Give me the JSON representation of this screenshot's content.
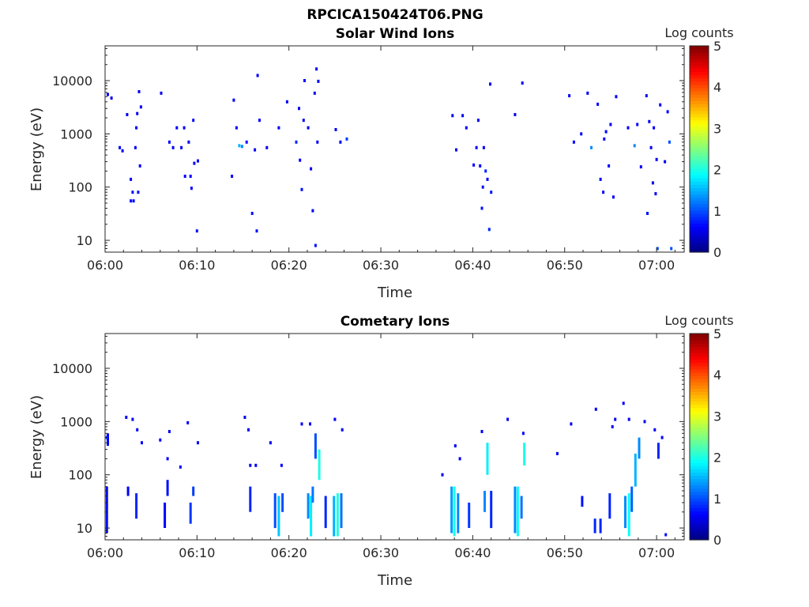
{
  "figure_title": "RPCICA150424T06.PNG",
  "colorbar": {
    "label": "Log counts",
    "ticks": [
      "0",
      "1",
      "2",
      "3",
      "4",
      "5"
    ],
    "range": [
      0,
      5
    ],
    "colormap": "jet"
  },
  "x_ticks": [
    "06:00",
    "06:10",
    "06:20",
    "06:30",
    "06:40",
    "06:50",
    "07:00"
  ],
  "y_ticks": [
    "10",
    "100",
    "1000",
    "10000"
  ],
  "chart_data": [
    {
      "type": "heatmap",
      "title": "Solar Wind Ions",
      "xlabel": "Time",
      "ylabel": "Energy (eV)",
      "x_range_minutes_after_06_00": [
        0,
        63
      ],
      "y_range_eV": [
        6,
        45000
      ],
      "y_scale": "log",
      "grid": false,
      "value_label": "Log counts",
      "cells_note": "each cell: [minutes after 06:00, energy eV, log counts]",
      "cells": [
        [
          0.3,
          5500,
          0.5
        ],
        [
          0.7,
          4700,
          0.5
        ],
        [
          1.6,
          550,
          0.6
        ],
        [
          1.9,
          480,
          0.6
        ],
        [
          2.4,
          2300,
          0.6
        ],
        [
          2.8,
          140,
          0.6
        ],
        [
          2.8,
          55,
          0.7
        ],
        [
          3.0,
          80,
          0.7
        ],
        [
          3.1,
          55,
          0.6
        ],
        [
          3.3,
          550,
          0.6
        ],
        [
          3.4,
          1300,
          0.6
        ],
        [
          3.5,
          2400,
          0.6
        ],
        [
          3.6,
          80,
          0.7
        ],
        [
          3.7,
          6200,
          0.6
        ],
        [
          3.8,
          250,
          0.6
        ],
        [
          3.9,
          3200,
          0.6
        ],
        [
          6.1,
          5800,
          0.6
        ],
        [
          7.0,
          700,
          0.6
        ],
        [
          7.4,
          550,
          0.6
        ],
        [
          7.8,
          1300,
          0.6
        ],
        [
          8.3,
          550,
          0.6
        ],
        [
          8.6,
          1300,
          0.6
        ],
        [
          8.7,
          160,
          0.6
        ],
        [
          9.1,
          700,
          0.6
        ],
        [
          9.3,
          160,
          0.6
        ],
        [
          9.4,
          95,
          0.6
        ],
        [
          9.6,
          1800,
          0.6
        ],
        [
          9.7,
          280,
          0.6
        ],
        [
          10.0,
          15,
          0.7
        ],
        [
          10.1,
          310,
          0.6
        ],
        [
          13.8,
          160,
          0.6
        ],
        [
          14.0,
          4300,
          0.6
        ],
        [
          14.3,
          1300,
          0.6
        ],
        [
          14.6,
          600,
          1.5
        ],
        [
          14.9,
          580,
          1.3
        ],
        [
          15.4,
          700,
          0.7
        ],
        [
          16.0,
          32,
          0.7
        ],
        [
          16.3,
          500,
          0.6
        ],
        [
          16.5,
          15,
          0.7
        ],
        [
          16.6,
          12500,
          0.6
        ],
        [
          16.8,
          1800,
          0.6
        ],
        [
          17.6,
          550,
          0.6
        ],
        [
          18.9,
          1300,
          0.6
        ],
        [
          19.8,
          4000,
          0.6
        ],
        [
          20.8,
          700,
          0.8
        ],
        [
          21.1,
          3000,
          0.6
        ],
        [
          21.2,
          320,
          0.6
        ],
        [
          21.4,
          90,
          0.7
        ],
        [
          21.6,
          1800,
          0.6
        ],
        [
          21.7,
          10000,
          0.6
        ],
        [
          22.1,
          1300,
          0.6
        ],
        [
          22.4,
          220,
          0.6
        ],
        [
          22.6,
          36,
          0.6
        ],
        [
          22.8,
          5800,
          0.6
        ],
        [
          22.9,
          8,
          0.7
        ],
        [
          23.0,
          16500,
          0.6
        ],
        [
          23.1,
          700,
          0.6
        ],
        [
          23.2,
          9700,
          0.6
        ],
        [
          25.1,
          1200,
          0.6
        ],
        [
          25.6,
          700,
          0.6
        ],
        [
          26.3,
          800,
          0.9
        ],
        [
          37.8,
          2200,
          0.6
        ],
        [
          38.2,
          500,
          0.6
        ],
        [
          38.9,
          2200,
          0.6
        ],
        [
          39.3,
          1300,
          0.6
        ],
        [
          40.1,
          260,
          0.6
        ],
        [
          40.4,
          550,
          0.6
        ],
        [
          40.6,
          1800,
          0.6
        ],
        [
          40.8,
          250,
          0.6
        ],
        [
          41.0,
          40,
          0.7
        ],
        [
          41.1,
          100,
          0.7
        ],
        [
          41.2,
          550,
          0.6
        ],
        [
          41.4,
          200,
          0.8
        ],
        [
          41.6,
          140,
          0.6
        ],
        [
          41.8,
          16,
          0.8
        ],
        [
          41.9,
          8600,
          0.6
        ],
        [
          42.0,
          80,
          0.7
        ],
        [
          44.6,
          2300,
          0.6
        ],
        [
          45.4,
          9000,
          0.6
        ],
        [
          50.5,
          5200,
          0.6
        ],
        [
          51.0,
          700,
          0.6
        ],
        [
          51.8,
          1000,
          0.6
        ],
        [
          52.5,
          5800,
          0.6
        ],
        [
          52.9,
          550,
          1.3
        ],
        [
          53.6,
          3600,
          0.6
        ],
        [
          53.9,
          140,
          0.6
        ],
        [
          54.2,
          80,
          0.6
        ],
        [
          54.3,
          800,
          0.6
        ],
        [
          54.5,
          1100,
          0.6
        ],
        [
          54.8,
          250,
          0.6
        ],
        [
          55.0,
          1500,
          0.6
        ],
        [
          55.3,
          65,
          0.6
        ],
        [
          55.6,
          5000,
          0.6
        ],
        [
          56.9,
          1300,
          0.6
        ],
        [
          57.6,
          600,
          1.3
        ],
        [
          57.9,
          1500,
          0.6
        ],
        [
          58.3,
          240,
          0.6
        ],
        [
          58.9,
          5200,
          0.6
        ],
        [
          59.0,
          32,
          0.7
        ],
        [
          59.2,
          1700,
          0.6
        ],
        [
          59.4,
          550,
          0.6
        ],
        [
          59.6,
          120,
          0.6
        ],
        [
          59.7,
          1300,
          0.6
        ],
        [
          59.9,
          75,
          0.6
        ],
        [
          60.0,
          330,
          0.6
        ],
        [
          60.1,
          7,
          1.0
        ],
        [
          60.4,
          3500,
          0.6
        ],
        [
          60.9,
          300,
          0.6
        ],
        [
          61.2,
          2600,
          0.6
        ],
        [
          61.4,
          700,
          1.0
        ],
        [
          61.6,
          7,
          1.0
        ]
      ]
    },
    {
      "type": "heatmap",
      "title": "Cometary Ions",
      "xlabel": "Time",
      "ylabel": "Energy (eV)",
      "x_range_minutes_after_06_00": [
        0,
        63
      ],
      "y_range_eV": [
        6,
        45000
      ],
      "y_scale": "log",
      "grid": false,
      "value_label": "Log counts",
      "columns_note": "vertical streaks: [minutes after 06:00, low energy eV, high energy eV, log counts]",
      "columns": [
        [
          0.2,
          8,
          60,
          0.7
        ],
        [
          0.3,
          350,
          600,
          0.6
        ],
        [
          2.5,
          40,
          60,
          0.6
        ],
        [
          3.4,
          15,
          45,
          0.8
        ],
        [
          6.5,
          10,
          30,
          0.6
        ],
        [
          6.8,
          40,
          80,
          0.7
        ],
        [
          9.3,
          12,
          30,
          0.9
        ],
        [
          9.6,
          40,
          60,
          0.9
        ],
        [
          15.8,
          20,
          60,
          0.8
        ],
        [
          18.5,
          10,
          45,
          1.0
        ],
        [
          18.9,
          7,
          40,
          1.6
        ],
        [
          19.3,
          20,
          45,
          1.0
        ],
        [
          22.1,
          15,
          45,
          1.3
        ],
        [
          22.4,
          7,
          40,
          1.8
        ],
        [
          22.6,
          30,
          60,
          1.2
        ],
        [
          22.9,
          200,
          600,
          1.0
        ],
        [
          23.3,
          80,
          300,
          2.0
        ],
        [
          24.0,
          10,
          40,
          0.8
        ],
        [
          24.9,
          7,
          40,
          1.5
        ],
        [
          25.3,
          7,
          45,
          2.0
        ],
        [
          25.7,
          10,
          45,
          1.2
        ],
        [
          37.7,
          8,
          60,
          1.4
        ],
        [
          38.0,
          7,
          60,
          2.0
        ],
        [
          38.4,
          8,
          45,
          1.3
        ],
        [
          39.6,
          10,
          30,
          0.9
        ],
        [
          41.3,
          20,
          50,
          1.3
        ],
        [
          41.6,
          100,
          400,
          1.8
        ],
        [
          42.0,
          10,
          50,
          0.8
        ],
        [
          44.6,
          8,
          60,
          1.3
        ],
        [
          44.9,
          7,
          60,
          1.9
        ],
        [
          45.3,
          15,
          40,
          1.2
        ],
        [
          45.6,
          150,
          400,
          2.0
        ],
        [
          51.9,
          25,
          40,
          0.7
        ],
        [
          53.3,
          8,
          15,
          0.8
        ],
        [
          53.9,
          8,
          15,
          0.8
        ],
        [
          54.9,
          15,
          45,
          0.8
        ],
        [
          56.6,
          10,
          40,
          1.3
        ],
        [
          57.0,
          7,
          45,
          1.9
        ],
        [
          57.3,
          20,
          60,
          1.1
        ],
        [
          57.7,
          60,
          250,
          1.5
        ],
        [
          58.1,
          200,
          500,
          1.3
        ],
        [
          60.2,
          200,
          400,
          0.8
        ],
        [
          61.0,
          7,
          8,
          0.7
        ]
      ],
      "cells_note": "isolated cells: [minutes after 06:00, energy eV, log counts]",
      "cells": [
        [
          0.2,
          500,
          0.8
        ],
        [
          2.3,
          1200,
          0.6
        ],
        [
          3.0,
          1100,
          0.6
        ],
        [
          3.5,
          700,
          0.6
        ],
        [
          4.0,
          400,
          0.6
        ],
        [
          6.0,
          450,
          0.6
        ],
        [
          6.8,
          200,
          0.6
        ],
        [
          7.0,
          650,
          0.6
        ],
        [
          8.2,
          140,
          0.6
        ],
        [
          9.0,
          950,
          0.6
        ],
        [
          10.1,
          400,
          0.6
        ],
        [
          15.2,
          1200,
          0.6
        ],
        [
          15.6,
          700,
          0.6
        ],
        [
          15.8,
          150,
          0.6
        ],
        [
          16.4,
          150,
          0.6
        ],
        [
          18.0,
          400,
          0.6
        ],
        [
          19.2,
          150,
          0.6
        ],
        [
          21.4,
          900,
          0.6
        ],
        [
          22.3,
          900,
          0.6
        ],
        [
          25.0,
          1100,
          0.6
        ],
        [
          25.8,
          700,
          0.6
        ],
        [
          36.7,
          100,
          0.6
        ],
        [
          38.1,
          350,
          0.6
        ],
        [
          38.6,
          200,
          0.6
        ],
        [
          41.0,
          650,
          0.6
        ],
        [
          43.8,
          1100,
          0.6
        ],
        [
          45.5,
          600,
          0.6
        ],
        [
          49.2,
          250,
          0.6
        ],
        [
          50.7,
          900,
          0.6
        ],
        [
          53.4,
          1700,
          0.6
        ],
        [
          55.2,
          800,
          0.6
        ],
        [
          55.5,
          1100,
          0.6
        ],
        [
          56.4,
          2200,
          0.6
        ],
        [
          57.0,
          1100,
          0.6
        ],
        [
          58.7,
          1000,
          0.6
        ],
        [
          59.8,
          700,
          0.6
        ],
        [
          60.6,
          500,
          0.6
        ]
      ]
    }
  ]
}
